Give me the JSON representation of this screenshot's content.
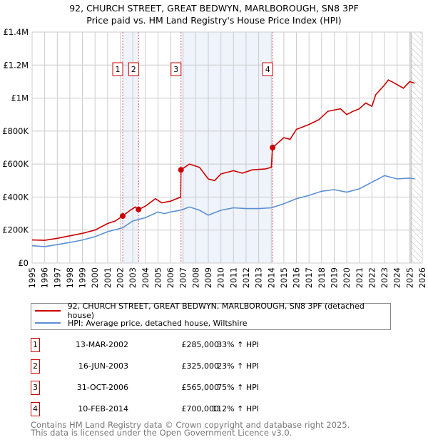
{
  "title_line1": "92, CHURCH STREET, GREAT BEDWYN, MARLBOROUGH, SN8 3PF",
  "title_line2": "Price paid vs. HM Land Registry's House Price Index (HPI)",
  "colors": {
    "property": "#cc0000",
    "hpi": "#5b8fd4",
    "shade": "#eef3fc",
    "grid": "#cccccc"
  },
  "chart_data": {
    "type": "line",
    "title": "Price paid vs. HM Land Registry's House Price Index (HPI)",
    "xlabel": "",
    "ylabel": "",
    "xlim": [
      1995,
      2026
    ],
    "ylim": [
      0,
      1400000
    ],
    "grid": true,
    "x_ticks": [
      "1995",
      "1996",
      "1997",
      "1998",
      "1999",
      "2000",
      "2001",
      "2002",
      "2003",
      "2004",
      "2005",
      "2006",
      "2007",
      "2008",
      "2009",
      "2010",
      "2011",
      "2012",
      "2013",
      "2014",
      "2015",
      "2016",
      "2017",
      "2018",
      "2019",
      "2020",
      "2021",
      "2022",
      "2023",
      "2024",
      "2025",
      "2026"
    ],
    "y_ticks": [
      {
        "value": 0,
        "label": "£0"
      },
      {
        "value": 200000,
        "label": "£200K"
      },
      {
        "value": 400000,
        "label": "£400K"
      },
      {
        "value": 600000,
        "label": "£600K"
      },
      {
        "value": 800000,
        "label": "£800K"
      },
      {
        "value": 1000000,
        "label": "£1M"
      },
      {
        "value": 1200000,
        "label": "£1.2M"
      },
      {
        "value": 1400000,
        "label": "£1.4M"
      }
    ],
    "shaded_ranges": [
      [
        2002.2,
        2003.46
      ],
      [
        2006.83,
        2014.11
      ]
    ],
    "hatched_from": 2025.1,
    "series": [
      {
        "name": "92, CHURCH STREET, GREAT BEDWYN, MARLBOROUGH, SN8 3PF (detached house)",
        "x": [
          1995,
          1996,
          1997,
          1998,
          1999,
          2000,
          2001,
          2001.6,
          2002.2,
          2002.8,
          2003.2,
          2003.46,
          2004,
          2004.8,
          2005.3,
          2006,
          2006.8,
          2006.83,
          2007.5,
          2008.3,
          2009,
          2009.5,
          2010,
          2011,
          2011.7,
          2012.5,
          2013.5,
          2014.0,
          2014.11,
          2015,
          2015.5,
          2016,
          2017,
          2017.8,
          2018.5,
          2019.5,
          2020,
          2020.5,
          2021,
          2021.5,
          2022,
          2022.3,
          2023,
          2023.3,
          2023.8,
          2024.5,
          2025,
          2025.4
        ],
        "y": [
          140000,
          138000,
          150000,
          165000,
          180000,
          200000,
          240000,
          255000,
          285000,
          320000,
          340000,
          325000,
          345000,
          390000,
          365000,
          375000,
          400000,
          565000,
          600000,
          580000,
          510000,
          500000,
          540000,
          560000,
          545000,
          565000,
          570000,
          580000,
          700000,
          760000,
          750000,
          810000,
          840000,
          870000,
          920000,
          935000,
          900000,
          920000,
          935000,
          970000,
          950000,
          1020000,
          1080000,
          1110000,
          1090000,
          1060000,
          1100000,
          1090000
        ]
      },
      {
        "name": "HPI: Average price, detached house, Wiltshire",
        "x": [
          1995,
          1996,
          1997,
          1998,
          1999,
          2000,
          2001,
          2002.2,
          2003,
          2004,
          2005,
          2005.5,
          2006,
          2006.8,
          2007.5,
          2008.3,
          2009,
          2010,
          2011,
          2012,
          2013,
          2014,
          2015,
          2016,
          2017,
          2018,
          2019,
          2020,
          2021,
          2022,
          2023,
          2024,
          2025,
          2025.4
        ],
        "y": [
          105000,
          100000,
          112000,
          125000,
          140000,
          160000,
          190000,
          214000,
          255000,
          275000,
          310000,
          300000,
          310000,
          320000,
          340000,
          320000,
          290000,
          320000,
          335000,
          330000,
          330000,
          335000,
          360000,
          390000,
          410000,
          435000,
          445000,
          430000,
          450000,
          490000,
          530000,
          510000,
          515000,
          510000
        ]
      }
    ],
    "sales": [
      {
        "num": "1",
        "date": "13-MAR-2002",
        "x": 2002.2,
        "price": "£285,000",
        "value": 285000,
        "pct": "33% ↑ HPI"
      },
      {
        "num": "2",
        "date": "16-JUN-2003",
        "x": 2003.46,
        "price": "£325,000",
        "value": 325000,
        "pct": "23% ↑ HPI"
      },
      {
        "num": "3",
        "date": "31-OCT-2006",
        "x": 2006.83,
        "price": "£565,000",
        "value": 565000,
        "pct": "75% ↑ HPI"
      },
      {
        "num": "4",
        "date": "10-FEB-2014",
        "x": 2014.11,
        "price": "£700,000",
        "value": 700000,
        "pct": "112% ↑ HPI"
      }
    ]
  },
  "legend": {
    "property": "92, CHURCH STREET, GREAT BEDWYN, MARLBOROUGH, SN8 3PF (detached house)",
    "hpi": "HPI: Average price, detached house, Wiltshire"
  },
  "footer": {
    "line1": "Contains HM Land Registry data © Crown copyright and database right 2025.",
    "line2": "This data is licensed under the Open Government Licence v3.0."
  }
}
